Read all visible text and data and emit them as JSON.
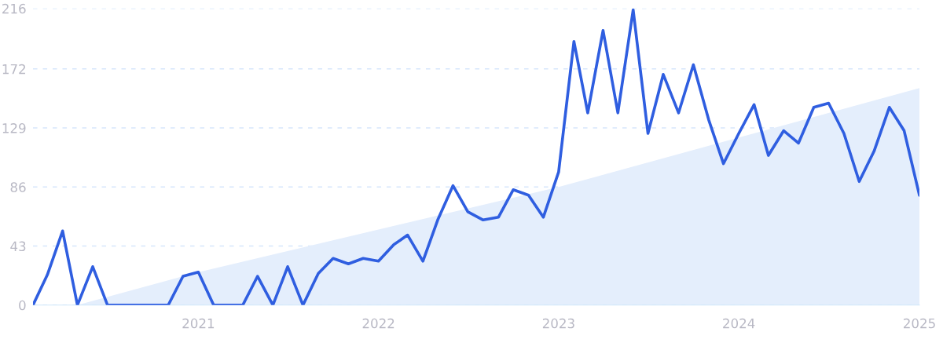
{
  "chart_data": {
    "type": "line",
    "x": [
      "2020-02",
      "2020-03",
      "2020-04",
      "2020-05",
      "2020-06",
      "2020-07",
      "2020-08",
      "2020-09",
      "2020-10",
      "2020-11",
      "2020-12",
      "2021-01",
      "2021-02",
      "2021-03",
      "2021-04",
      "2021-05",
      "2021-06",
      "2021-07",
      "2021-08",
      "2021-09",
      "2021-10",
      "2021-11",
      "2021-12",
      "2022-01",
      "2022-02",
      "2022-03",
      "2022-04",
      "2022-05",
      "2022-06",
      "2022-07",
      "2022-08",
      "2022-09",
      "2022-10",
      "2022-11",
      "2022-12",
      "2023-01",
      "2023-02",
      "2023-03",
      "2023-04",
      "2023-05",
      "2023-06",
      "2023-07",
      "2023-08",
      "2023-09",
      "2023-10",
      "2023-11",
      "2023-12",
      "2024-01",
      "2024-02",
      "2024-03",
      "2024-04",
      "2024-05",
      "2024-06",
      "2024-07",
      "2024-08",
      "2024-09",
      "2024-10",
      "2024-11",
      "2024-12",
      "2025-01"
    ],
    "series": [
      {
        "type": "area",
        "color": "#e4eefc",
        "x": [
          "2020-05",
          "2021-01",
          "2022-01",
          "2023-01",
          "2024-01",
          "2025-01"
        ],
        "values": [
          0,
          24,
          55,
          86,
          122,
          158
        ]
      },
      {
        "color": "#2f5ee0",
        "values": [
          0,
          22,
          54,
          0,
          28,
          0,
          0,
          0,
          0,
          0,
          21,
          24,
          0,
          0,
          0,
          21,
          0,
          28,
          0,
          23,
          34,
          30,
          34,
          32,
          44,
          51,
          32,
          62,
          87,
          68,
          62,
          64,
          84,
          80,
          64,
          97,
          192,
          140,
          200,
          140,
          215,
          125,
          168,
          140,
          175,
          135,
          103,
          125,
          146,
          109,
          127,
          118,
          144,
          147,
          125,
          90,
          112,
          144,
          127,
          80
        ]
      }
    ],
    "xlim": [
      "2020-02",
      "2025-01"
    ],
    "xticks": [
      "2021",
      "2022",
      "2023",
      "2024",
      "2025"
    ],
    "ylim": [
      0,
      216
    ],
    "yticks": [
      0,
      43,
      86,
      129,
      172,
      216
    ],
    "grid": "y",
    "marker": "none",
    "line_style": "solid"
  }
}
